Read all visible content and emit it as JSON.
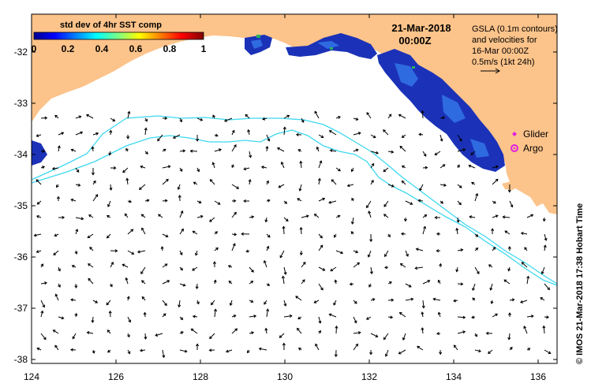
{
  "colorbar": {
    "title": "std dev of 4hr SST comp",
    "ticks": [
      "0",
      "0.2",
      "0.4",
      "0.6",
      "0.8",
      "1"
    ]
  },
  "date": {
    "line1": "21-Mar-2018",
    "line2": "00:00Z"
  },
  "gsla_info": {
    "line1": "GSLA (0.1m contours)",
    "line2": "and velocities for",
    "line3": "16-Mar 00:00Z",
    "line4": "0.5m/s (1kt 24h)"
  },
  "legend": {
    "glider": "Glider",
    "argo": "Argo"
  },
  "credit": "© IMOS 21-Mar-2018 17:38 Hobart Time",
  "axes": {
    "x_ticks": [
      "124",
      "126",
      "128",
      "130",
      "132",
      "134",
      "136"
    ],
    "y_ticks": [
      "-32",
      "-33",
      "-34",
      "-35",
      "-36",
      "-37",
      "-38"
    ]
  },
  "colors": {
    "land": "#FCC38A",
    "contour": "#3ED8F0",
    "sst_dark": "#1B32B8",
    "sst_mid": "#2F6BE0",
    "legend_marker": "#E020E0"
  }
}
